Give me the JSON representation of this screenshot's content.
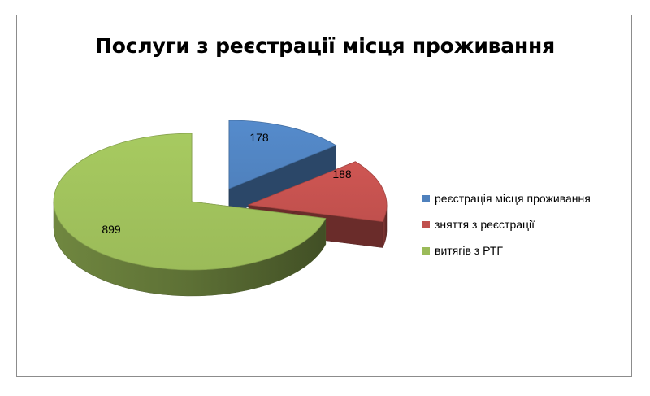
{
  "chart_data": {
    "type": "pie",
    "title": "Послуги з реєстрації місця проживання",
    "categories": [
      "реєстрація місця проживання",
      "зняття з реєстрації",
      "витягів з РТГ"
    ],
    "values": [
      178,
      188,
      899
    ],
    "colors": [
      "#4f81bd",
      "#c0504d",
      "#9bbb59"
    ],
    "style": "3d-exploded",
    "legend": "right"
  }
}
